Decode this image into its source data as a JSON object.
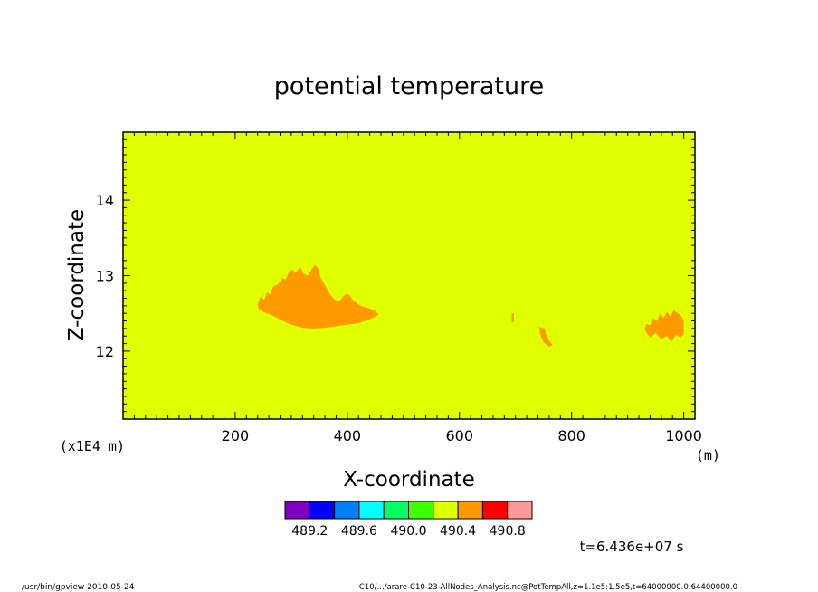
{
  "chart_data": {
    "type": "heatmap",
    "title": "potential temperature",
    "xlabel": "X-coordinate",
    "ylabel": "Z-coordinate",
    "x_unit": "(m)",
    "y_unit": "(x1E4 m)",
    "xlim": [
      0,
      1020
    ],
    "ylim": [
      11.1,
      14.9
    ],
    "x_ticks": [
      200,
      400,
      600,
      800,
      1000
    ],
    "x_tick_labels": [
      "200",
      "400",
      "600",
      "800",
      "1000"
    ],
    "y_ticks": [
      12,
      13,
      14
    ],
    "y_tick_labels": [
      "12",
      "13",
      "14"
    ],
    "background_value_band": "490.2-490.4",
    "background_color": "#e0ff00",
    "anomaly_color": "#ff9900",
    "anomalies": [
      {
        "name": "main-cell",
        "points": [
          [
            240,
            12.62
          ],
          [
            245,
            12.72
          ],
          [
            252,
            12.68
          ],
          [
            256,
            12.78
          ],
          [
            262,
            12.75
          ],
          [
            268,
            12.86
          ],
          [
            276,
            12.88
          ],
          [
            284,
            12.97
          ],
          [
            290,
            12.95
          ],
          [
            296,
            13.05
          ],
          [
            302,
            13.08
          ],
          [
            308,
            13.04
          ],
          [
            316,
            13.12
          ],
          [
            322,
            13.02
          ],
          [
            330,
            13.0
          ],
          [
            336,
            13.08
          ],
          [
            342,
            13.14
          ],
          [
            348,
            13.1
          ],
          [
            352,
            12.98
          ],
          [
            358,
            12.9
          ],
          [
            364,
            12.82
          ],
          [
            370,
            12.74
          ],
          [
            378,
            12.68
          ],
          [
            386,
            12.66
          ],
          [
            392,
            12.72
          ],
          [
            398,
            12.76
          ],
          [
            404,
            12.74
          ],
          [
            410,
            12.68
          ],
          [
            416,
            12.64
          ],
          [
            424,
            12.6
          ],
          [
            434,
            12.58
          ],
          [
            444,
            12.55
          ],
          [
            452,
            12.52
          ],
          [
            456,
            12.48
          ],
          [
            448,
            12.45
          ],
          [
            436,
            12.41
          ],
          [
            420,
            12.37
          ],
          [
            400,
            12.35
          ],
          [
            380,
            12.33
          ],
          [
            360,
            12.31
          ],
          [
            340,
            12.3
          ],
          [
            320,
            12.31
          ],
          [
            300,
            12.35
          ],
          [
            280,
            12.42
          ],
          [
            264,
            12.48
          ],
          [
            250,
            12.52
          ],
          [
            242,
            12.56
          ]
        ]
      },
      {
        "name": "spot-695",
        "points": [
          [
            693,
            12.5
          ],
          [
            697,
            12.5
          ],
          [
            697,
            12.38
          ],
          [
            693,
            12.38
          ]
        ]
      },
      {
        "name": "spot-750",
        "points": [
          [
            742,
            12.32
          ],
          [
            752,
            12.3
          ],
          [
            756,
            12.18
          ],
          [
            762,
            12.12
          ],
          [
            766,
            12.08
          ],
          [
            760,
            12.06
          ],
          [
            750,
            12.12
          ],
          [
            744,
            12.22
          ]
        ]
      },
      {
        "name": "spot-940",
        "points": [
          [
            930,
            12.3
          ],
          [
            934,
            12.36
          ],
          [
            940,
            12.34
          ],
          [
            946,
            12.44
          ],
          [
            952,
            12.4
          ],
          [
            958,
            12.5
          ],
          [
            964,
            12.44
          ],
          [
            970,
            12.52
          ],
          [
            976,
            12.46
          ],
          [
            982,
            12.54
          ],
          [
            990,
            12.5
          ],
          [
            996,
            12.46
          ],
          [
            1000,
            12.4
          ],
          [
            1000,
            12.22
          ],
          [
            994,
            12.18
          ],
          [
            986,
            12.22
          ],
          [
            978,
            12.12
          ],
          [
            970,
            12.2
          ],
          [
            960,
            12.16
          ],
          [
            950,
            12.24
          ],
          [
            940,
            12.18
          ],
          [
            934,
            12.24
          ]
        ]
      }
    ],
    "colorbar": {
      "colors": [
        "#8000c0",
        "#0000ff",
        "#0080ff",
        "#00ffff",
        "#00ff60",
        "#40ff00",
        "#e0ff00",
        "#ff9900",
        "#ff0000",
        "#ff9999"
      ],
      "labels": [
        "489.2",
        "489.6",
        "490.0",
        "490.4",
        "490.8"
      ]
    }
  },
  "annotations": {
    "time_label": "t=6.436e+07 s",
    "footer_left": "/usr/bin/gpview   2010-05-24",
    "footer_right": "C10/.../arare-C10-23-AllNodes_Analysis.nc@PotTempAll,z=1.1e5:1.5e5,t=64000000.0:64400000.0"
  }
}
